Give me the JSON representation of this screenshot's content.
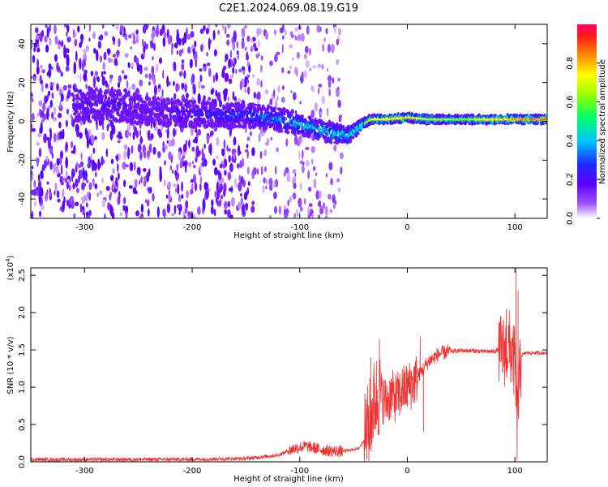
{
  "title": "C2E1.2024.069.08.19.G19",
  "chart_data": [
    {
      "type": "heatmap",
      "title": "C2E1.2024.069.08.19.G19",
      "xlabel": "Height of straight line (km)",
      "ylabel": "Frequency (Hz)",
      "xlim": [
        -350,
        130
      ],
      "ylim": [
        -50,
        50
      ],
      "xticks": [
        -300,
        -200,
        -100,
        0,
        100
      ],
      "yticks": [
        -40,
        -20,
        0,
        20,
        40
      ],
      "grid": false,
      "colorbar": {
        "label": "Normalized spectral amplitude",
        "range": [
          0,
          1
        ],
        "ticks": [
          "0.0",
          "0.2",
          "0.4",
          "0.6",
          "0.8"
        ],
        "colormap": [
          "#ffffff",
          "#6a00ff",
          "#1e2bff",
          "#00c8ff",
          "#00ff66",
          "#9bff00",
          "#ffff00",
          "#ff8a00",
          "#ff1a1a",
          "#ff0066"
        ]
      },
      "ridge": {
        "x": [
          -310,
          -290,
          -270,
          -250,
          -230,
          -210,
          -190,
          -170,
          -150,
          -130,
          -110,
          -90,
          -70,
          -55,
          -45,
          -35,
          -20,
          0,
          20,
          50,
          80,
          110,
          130
        ],
        "center_hz": [
          8,
          9,
          8,
          6,
          5,
          4,
          4,
          3,
          3,
          2,
          0,
          -3,
          -6,
          -7,
          -3,
          1,
          1,
          2,
          1,
          1,
          1,
          1,
          1
        ],
        "halfwidth_hz": [
          8,
          8,
          8,
          7,
          7,
          7,
          7,
          6,
          6,
          6,
          6,
          5,
          5,
          4,
          3,
          2,
          2,
          2,
          2,
          2,
          2,
          2,
          2
        ],
        "peak_amplitude": [
          0.22,
          0.25,
          0.25,
          0.2,
          0.2,
          0.28,
          0.3,
          0.32,
          0.35,
          0.42,
          0.45,
          0.5,
          0.55,
          0.6,
          0.65,
          0.75,
          0.8,
          0.85,
          0.7,
          0.65,
          0.82,
          0.9,
          0.9
        ]
      },
      "background_scatter": {
        "dense_x_range": [
          -350,
          -140
        ],
        "sparse_x_range": [
          -140,
          -60
        ],
        "amplitude": 0.12
      }
    },
    {
      "type": "line",
      "xlabel": "Height of straight line (km)",
      "ylabel": "SNR (10 * v/v)",
      "y_multiplier": "(x10",
      "y_multiplier_exp": "4",
      "y_multiplier_close": ")",
      "xlim": [
        -350,
        130
      ],
      "ylim": [
        0,
        26000
      ],
      "xticks": [
        -300,
        -200,
        -100,
        0,
        100
      ],
      "yticks": [
        0,
        5000,
        10000,
        15000,
        20000,
        25000
      ],
      "ytick_labels": [
        "0.0",
        "0.5",
        "1.0",
        "1.5",
        "2.0",
        "2.5"
      ],
      "grid": false,
      "color": "#ee3333",
      "series": [
        {
          "x": [
            -350,
            -300,
            -250,
            -200,
            -150,
            -120,
            -105,
            -95,
            -85,
            -75,
            -60,
            -45,
            -40,
            -35,
            -30,
            -25,
            -20,
            -15,
            -10,
            -5,
            0,
            5,
            10,
            15,
            20,
            25,
            30,
            40,
            50,
            60,
            70,
            80,
            85,
            90,
            95,
            100,
            102,
            104,
            106,
            110,
            120,
            130
          ],
          "values": [
            300,
            300,
            320,
            340,
            450,
            900,
            1800,
            2100,
            1800,
            1500,
            1400,
            1800,
            3000,
            5500,
            8500,
            9000,
            8000,
            9000,
            8500,
            9500,
            10000,
            10500,
            11500,
            12500,
            13500,
            14000,
            14500,
            14800,
            14900,
            14900,
            14800,
            14800,
            15000,
            14800,
            15500,
            13000,
            5000,
            10000,
            14200,
            14600,
            14600,
            14600
          ]
        }
      ],
      "noise": [
        {
          "x_range": [
            -350,
            -110
          ],
          "amplitude": 250
        },
        {
          "x_range": [
            -110,
            -60
          ],
          "amplitude": 800
        },
        {
          "x_range": [
            -40,
            -25
          ],
          "amplitude": 6000
        },
        {
          "x_range": [
            -25,
            10
          ],
          "amplitude": 3500
        },
        {
          "x_range": [
            10,
            40
          ],
          "amplitude": 1000
        },
        {
          "x_range": [
            40,
            85
          ],
          "amplitude": 300
        },
        {
          "x_range": [
            85,
            106
          ],
          "amplitude": 5000
        },
        {
          "x_range": [
            106,
            130
          ],
          "amplitude": 250
        }
      ],
      "spikes": [
        {
          "x": -34,
          "value": 14000
        },
        {
          "x": -26,
          "value": 16500
        },
        {
          "x": 12,
          "value": 16800
        },
        {
          "x": 15,
          "value": 4000
        },
        {
          "x": 92,
          "value": 20500
        },
        {
          "x": 101,
          "value": 26000
        },
        {
          "x": 102,
          "value": 200
        },
        {
          "x": 103,
          "value": 23000
        }
      ]
    }
  ]
}
